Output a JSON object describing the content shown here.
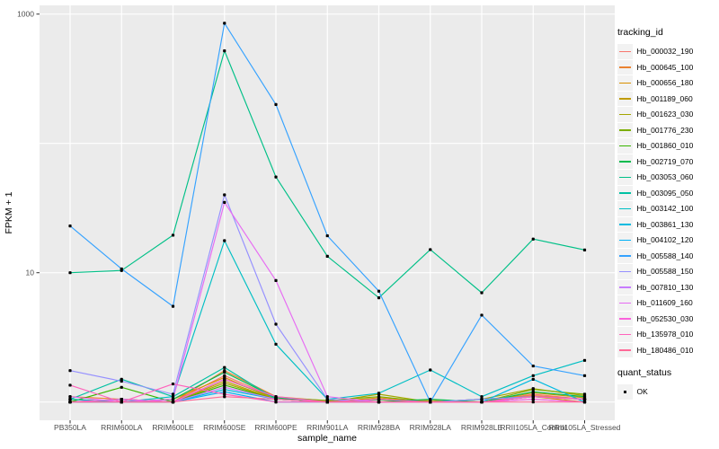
{
  "chart_data": {
    "type": "line",
    "title": "",
    "xlabel": "sample_name",
    "ylabel": "FPKM + 1",
    "y_scale": "log10",
    "y_tick_labels": [
      {
        "value": 10,
        "label": "10"
      },
      {
        "value": 1000,
        "label": "1000"
      }
    ],
    "y_gridlines": [
      1,
      10,
      100,
      1000
    ],
    "ylim_log": [
      0.93,
      1100
    ],
    "grid": true,
    "panel_bg": "#EBEBEB",
    "grid_color": "#FFFFFF",
    "tick_text_color": "#4D4D4D",
    "point_color": "#000000",
    "legend_title": "tracking_id",
    "legend2_title": "quant_status",
    "legend2_items": [
      {
        "label": "OK",
        "marker": "black-square"
      }
    ],
    "categories": [
      "PB350LA",
      "RRIM600LA",
      "RRIM600LE",
      "RRIM600SE",
      "RRIM600PE",
      "RRIM901LA",
      "RRIM928BA",
      "RRIM928LA",
      "RRIM928LE",
      "RRII105LA_Control",
      "RRII105LA_Stressed"
    ],
    "series": [
      {
        "name": "Hb_000032_190",
        "color": "#F8766D",
        "values": [
          1.05,
          1.0,
          1.0,
          1.6,
          1.08,
          1.0,
          1.05,
          1.0,
          1.0,
          1.15,
          1.05
        ]
      },
      {
        "name": "Hb_000645_100",
        "color": "#EA8331",
        "values": [
          1.1,
          1.05,
          1.0,
          1.75,
          1.1,
          1.02,
          1.0,
          1.0,
          1.05,
          1.12,
          1.05
        ]
      },
      {
        "name": "Hb_000656_180",
        "color": "#D89000",
        "values": [
          1.0,
          1.0,
          1.05,
          1.55,
          1.05,
          1.0,
          1.08,
          1.0,
          1.0,
          1.1,
          1.0
        ]
      },
      {
        "name": "Hb_001189_060",
        "color": "#C09B00",
        "values": [
          1.0,
          1.0,
          1.0,
          1.45,
          1.05,
          1.0,
          1.0,
          1.03,
          1.0,
          1.18,
          1.08
        ]
      },
      {
        "name": "Hb_001623_030",
        "color": "#A3A500",
        "values": [
          1.0,
          1.05,
          1.0,
          1.4,
          1.05,
          1.0,
          1.15,
          1.0,
          1.05,
          1.27,
          1.12
        ]
      },
      {
        "name": "Hb_001776_230",
        "color": "#7CAE00",
        "values": [
          1.05,
          1.0,
          1.0,
          1.5,
          1.08,
          1.03,
          1.1,
          1.0,
          1.0,
          1.25,
          1.15
        ]
      },
      {
        "name": "Hb_001860_010",
        "color": "#39B600",
        "values": [
          1.0,
          1.3,
          1.0,
          1.35,
          1.05,
          1.0,
          1.04,
          1.0,
          1.0,
          1.1,
          1.05
        ]
      },
      {
        "name": "Hb_002719_070",
        "color": "#00BB4E",
        "values": [
          1.0,
          1.0,
          1.05,
          1.7,
          1.08,
          1.0,
          1.0,
          1.05,
          1.0,
          1.2,
          1.1
        ]
      },
      {
        "name": "Hb_003053_060",
        "color": "#00C087",
        "values": [
          10,
          10.4,
          19.5,
          520,
          55,
          13.4,
          6.4,
          15.1,
          7.0,
          18.2,
          15.0
        ]
      },
      {
        "name": "Hb_003095_050",
        "color": "#00C1A3",
        "values": [
          1.05,
          1.5,
          1.1,
          1.85,
          1.05,
          1.0,
          1.0,
          1.0,
          1.05,
          1.1,
          1.05
        ]
      },
      {
        "name": "Hb_003142_100",
        "color": "#00BFC4",
        "values": [
          1.05,
          1.0,
          1.1,
          17.7,
          2.8,
          1.05,
          1.17,
          1.77,
          1.1,
          1.6,
          2.1
        ]
      },
      {
        "name": "Hb_003861_130",
        "color": "#00BAE0",
        "values": [
          1.0,
          1.0,
          1.0,
          1.25,
          1.05,
          1.0,
          1.0,
          1.0,
          1.0,
          1.5,
          1.0
        ]
      },
      {
        "name": "Hb_004102_120",
        "color": "#00B0F6",
        "values": [
          1.0,
          1.05,
          1.0,
          1.2,
          1.0,
          1.0,
          1.05,
          1.0,
          1.0,
          1.1,
          1.05
        ]
      },
      {
        "name": "Hb_005588_140",
        "color": "#35A2FF",
        "values": [
          23,
          10.7,
          5.5,
          850,
          200,
          19.3,
          7.2,
          1.0,
          4.7,
          1.9,
          1.6
        ]
      },
      {
        "name": "Hb_005588_150",
        "color": "#9590FF",
        "values": [
          1.75,
          1.45,
          1.15,
          40,
          4.0,
          1.05,
          1.0,
          1.0,
          1.05,
          1.1,
          1.05
        ]
      },
      {
        "name": "Hb_007810_130",
        "color": "#C77CFF",
        "values": [
          1.0,
          1.0,
          1.0,
          1.3,
          1.05,
          1.0,
          1.0,
          1.0,
          1.0,
          1.05,
          1.0
        ]
      },
      {
        "name": "Hb_011609_160",
        "color": "#E76BF3",
        "values": [
          1.1,
          1.0,
          1.05,
          35,
          8.7,
          1.1,
          1.0,
          1.0,
          1.0,
          1.1,
          1.05
        ]
      },
      {
        "name": "Hb_052530_030",
        "color": "#FA62DB",
        "values": [
          1.0,
          1.05,
          1.0,
          1.5,
          1.1,
          1.0,
          1.0,
          1.0,
          1.0,
          1.05,
          1.0
        ]
      },
      {
        "name": "Hb_135978_010",
        "color": "#FF62BC",
        "values": [
          1.35,
          1.0,
          1.38,
          1.15,
          1.0,
          1.0,
          1.05,
          1.0,
          1.0,
          1.1,
          1.05
        ]
      },
      {
        "name": "Hb_180486_010",
        "color": "#FF6A98",
        "values": [
          1.0,
          1.0,
          1.0,
          1.1,
          1.05,
          1.0,
          1.0,
          1.0,
          1.0,
          1.0,
          1.0
        ]
      }
    ]
  }
}
